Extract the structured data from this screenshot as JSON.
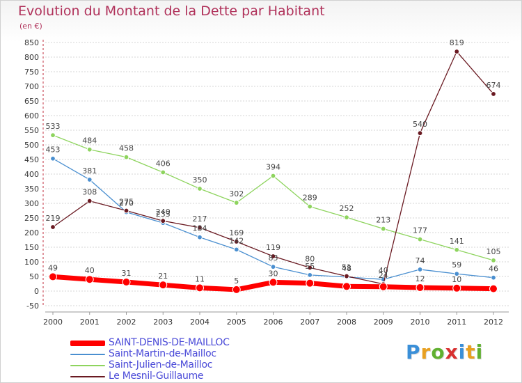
{
  "header": {
    "title": "Evolution du Montant de la Dette par Habitant",
    "unit": "(en €)"
  },
  "logo": {
    "text": "Proxiti",
    "letters": [
      "P",
      "r",
      "o",
      "x",
      "i",
      "t",
      "i"
    ],
    "colors": [
      "#3a8fd8",
      "#e8a020",
      "#60b030",
      "#d83030",
      "#3a8fd8",
      "#e8a020",
      "#60b030"
    ]
  },
  "chart_data": {
    "type": "line",
    "title": "Evolution du Montant de la Dette par Habitant",
    "subtitle": "(en €)",
    "xlabel": "",
    "ylabel": "",
    "x": [
      "2000",
      "2001",
      "2002",
      "2003",
      "2004",
      "2005",
      "2006",
      "2007",
      "2008",
      "2009",
      "2010",
      "2011",
      "2012"
    ],
    "ylim": [
      -50,
      850
    ],
    "yticks": [
      -50,
      0,
      50,
      100,
      150,
      200,
      250,
      300,
      350,
      400,
      450,
      500,
      550,
      600,
      650,
      700,
      750,
      800,
      850
    ],
    "grid": "horizontal",
    "legend_position": "bottom-left",
    "series": [
      {
        "name": "SAINT-DENIS-DE-MAILLOC",
        "color": "#ff0000",
        "values": [
          49,
          40,
          31,
          21,
          11,
          5,
          30,
          27,
          16,
          15,
          12,
          10,
          8
        ],
        "labels": [
          "49",
          "40",
          "31",
          "21",
          "11",
          "5",
          "30",
          "",
          "",
          "",
          "12",
          "10",
          ""
        ]
      },
      {
        "name": "Saint-Martin-de-Mailloc",
        "color": "#4a8fd0",
        "values": [
          453,
          381,
          270,
          233,
          184,
          142,
          83,
          55,
          48,
          40,
          74,
          59,
          46
        ],
        "labels": [
          "453",
          "381",
          "270",
          "233",
          "184",
          "142",
          "83",
          "55",
          "48",
          "40",
          "74",
          "59",
          "46"
        ]
      },
      {
        "name": "Saint-Julien-de-Mailloc",
        "color": "#8ed45e",
        "values": [
          533,
          484,
          458,
          406,
          350,
          302,
          394,
          289,
          252,
          213,
          177,
          141,
          105
        ],
        "labels": [
          "533",
          "484",
          "458",
          "406",
          "350",
          "302",
          "394",
          "289",
          "252",
          "213",
          "177",
          "141",
          "105"
        ]
      },
      {
        "name": "Le Mesnil-Guillaume",
        "color": "#6a1a22",
        "values": [
          219,
          308,
          275,
          240,
          217,
          169,
          119,
          80,
          51,
          24,
          540,
          819,
          674
        ],
        "labels": [
          "219",
          "308",
          "275",
          "240",
          "217",
          "169",
          "119",
          "80",
          "51",
          "24",
          "540",
          "819",
          "674"
        ]
      }
    ]
  }
}
